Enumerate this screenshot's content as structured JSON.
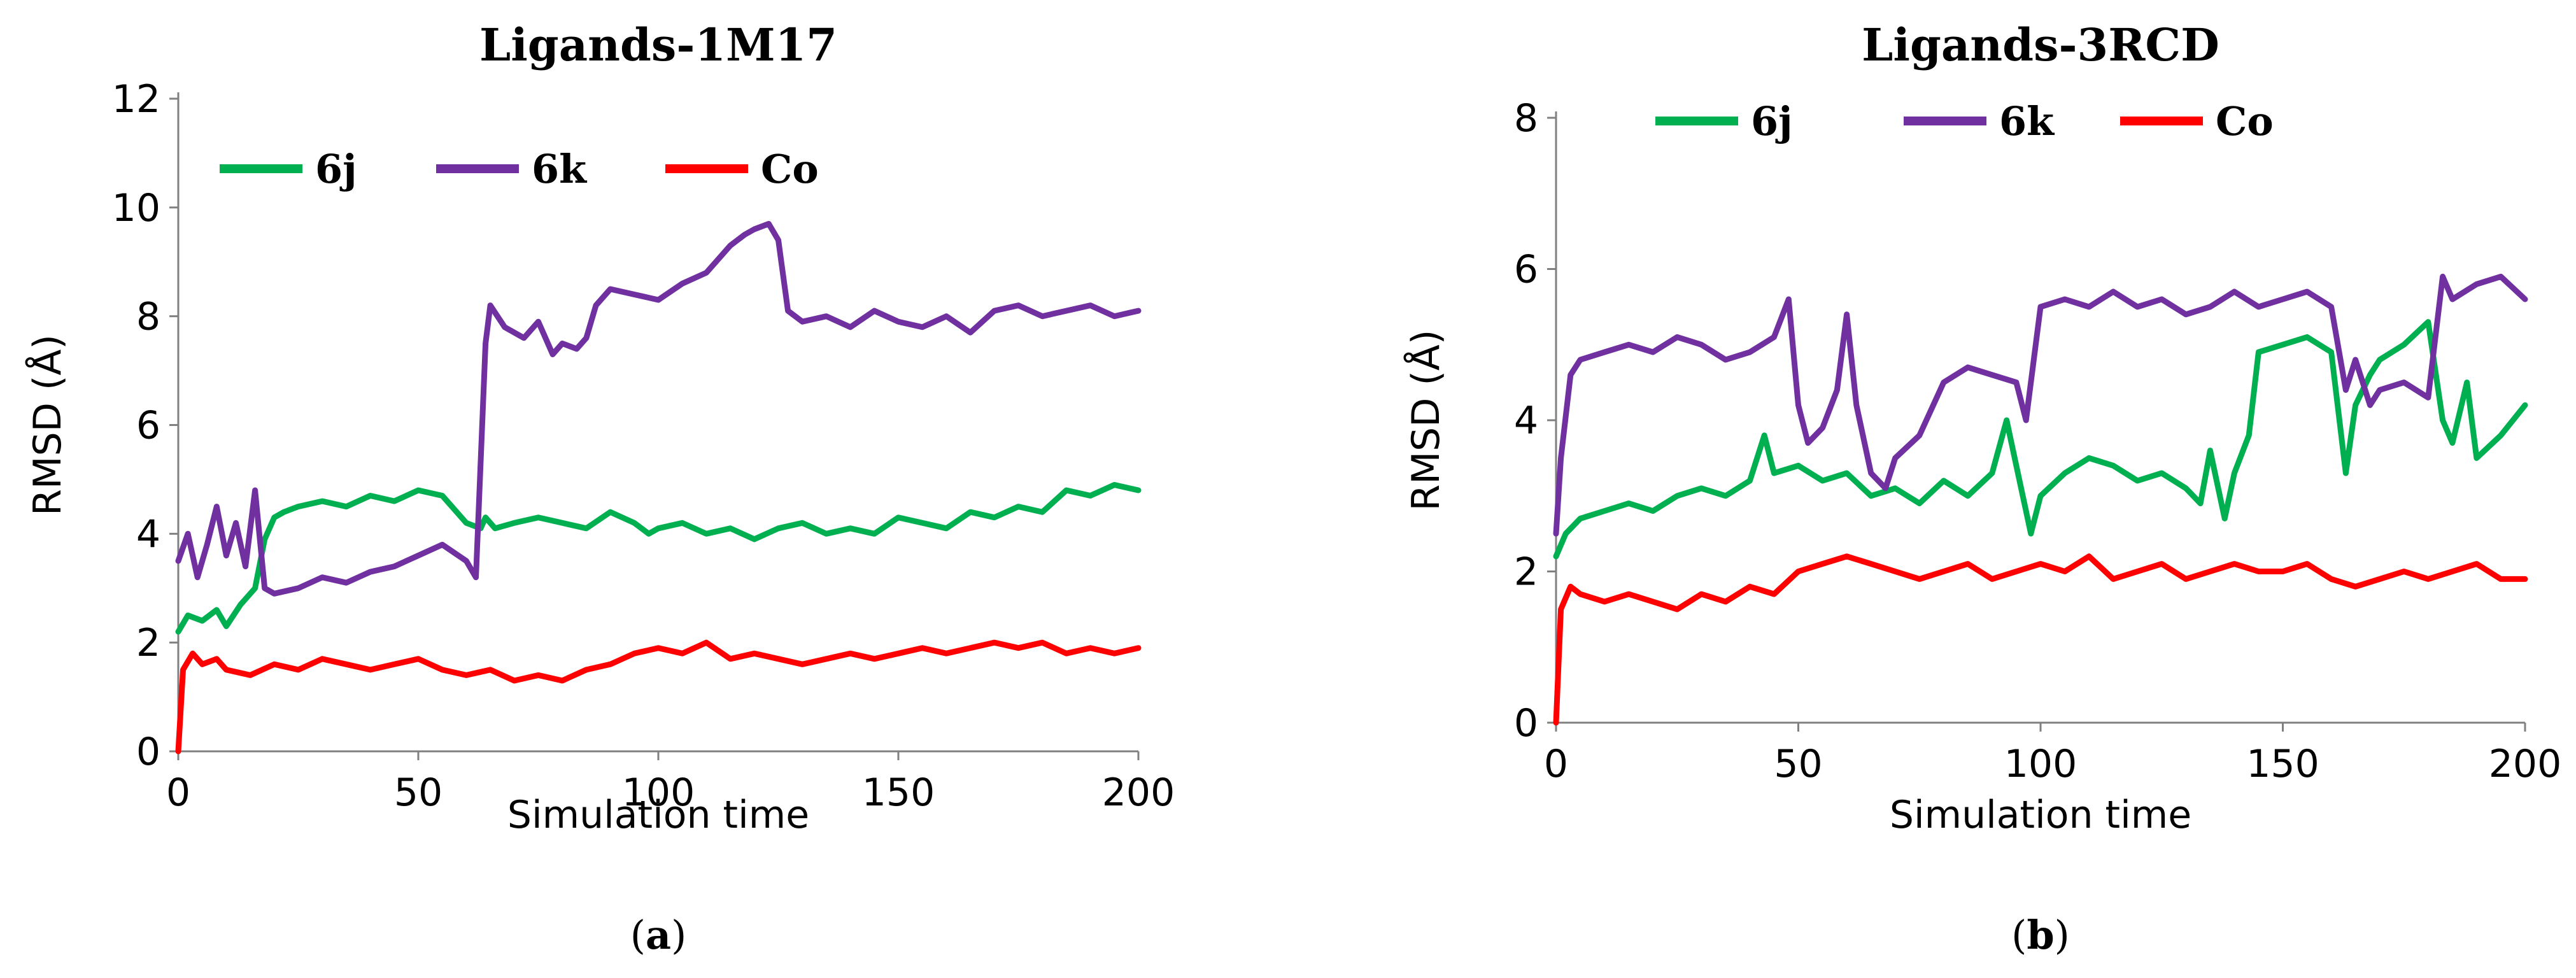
{
  "chart_data": [
    {
      "type": "line",
      "title": "Ligands-1M17",
      "xlabel": "Simulation time",
      "ylabel": "RMSD (Å)",
      "xlim": [
        0,
        200
      ],
      "ylim": [
        0,
        12
      ],
      "xticks": [
        "0",
        "50",
        "100",
        "150",
        "200"
      ],
      "yticks": [
        "0",
        "2",
        "4",
        "6",
        "8",
        "10",
        "12"
      ],
      "legend_position": "top-left",
      "panel_label": "a",
      "series": [
        {
          "name": "6j",
          "color": "#00b050",
          "x": [
            0,
            2,
            5,
            8,
            10,
            13,
            16,
            18,
            20,
            22,
            25,
            30,
            35,
            40,
            45,
            50,
            55,
            60,
            63,
            64,
            66,
            70,
            75,
            80,
            85,
            90,
            95,
            98,
            100,
            105,
            110,
            115,
            120,
            125,
            130,
            135,
            140,
            145,
            150,
            155,
            160,
            165,
            170,
            175,
            180,
            185,
            190,
            195,
            200
          ],
          "y": [
            2.2,
            2.5,
            2.4,
            2.6,
            2.3,
            2.7,
            3.0,
            3.9,
            4.3,
            4.4,
            4.5,
            4.6,
            4.5,
            4.7,
            4.6,
            4.8,
            4.7,
            4.2,
            4.1,
            4.3,
            4.1,
            4.2,
            4.3,
            4.2,
            4.1,
            4.4,
            4.2,
            4.0,
            4.1,
            4.2,
            4.0,
            4.1,
            3.9,
            4.1,
            4.2,
            4.0,
            4.1,
            4.0,
            4.3,
            4.2,
            4.1,
            4.4,
            4.3,
            4.5,
            4.4,
            4.8,
            4.7,
            4.9,
            4.8
          ]
        },
        {
          "name": "6k",
          "color": "#7030a0",
          "x": [
            0,
            2,
            4,
            6,
            8,
            10,
            12,
            14,
            16,
            18,
            20,
            25,
            30,
            35,
            40,
            45,
            50,
            55,
            60,
            62,
            64,
            65,
            68,
            72,
            75,
            78,
            80,
            83,
            85,
            87,
            90,
            95,
            100,
            105,
            110,
            115,
            118,
            120,
            123,
            125,
            127,
            130,
            135,
            140,
            145,
            150,
            155,
            160,
            165,
            170,
            175,
            180,
            185,
            190,
            195,
            200
          ],
          "y": [
            3.5,
            4.0,
            3.2,
            3.8,
            4.5,
            3.6,
            4.2,
            3.4,
            4.8,
            3.0,
            2.9,
            3.0,
            3.2,
            3.1,
            3.3,
            3.4,
            3.6,
            3.8,
            3.5,
            3.2,
            7.5,
            8.2,
            7.8,
            7.6,
            7.9,
            7.3,
            7.5,
            7.4,
            7.6,
            8.2,
            8.5,
            8.4,
            8.3,
            8.6,
            8.8,
            9.3,
            9.5,
            9.6,
            9.7,
            9.4,
            8.1,
            7.9,
            8.0,
            7.8,
            8.1,
            7.9,
            7.8,
            8.0,
            7.7,
            8.1,
            8.2,
            8.0,
            8.1,
            8.2,
            8.0,
            8.1
          ]
        },
        {
          "name": "Co",
          "color": "#ff0000",
          "x": [
            0,
            1,
            3,
            5,
            8,
            10,
            15,
            20,
            25,
            30,
            35,
            40,
            45,
            50,
            55,
            60,
            65,
            70,
            75,
            80,
            85,
            90,
            95,
            100,
            105,
            110,
            115,
            120,
            125,
            130,
            135,
            140,
            145,
            150,
            155,
            160,
            165,
            170,
            175,
            180,
            185,
            190,
            195,
            200
          ],
          "y": [
            0,
            1.5,
            1.8,
            1.6,
            1.7,
            1.5,
            1.4,
            1.6,
            1.5,
            1.7,
            1.6,
            1.5,
            1.6,
            1.7,
            1.5,
            1.4,
            1.5,
            1.3,
            1.4,
            1.3,
            1.5,
            1.6,
            1.8,
            1.9,
            1.8,
            2.0,
            1.7,
            1.8,
            1.7,
            1.6,
            1.7,
            1.8,
            1.7,
            1.8,
            1.9,
            1.8,
            1.9,
            2.0,
            1.9,
            2.0,
            1.8,
            1.9,
            1.8,
            1.9
          ]
        }
      ]
    },
    {
      "type": "line",
      "title": "Ligands-3RCD",
      "xlabel": "Simulation time",
      "ylabel": "RMSD (Å)",
      "xlim": [
        0,
        200
      ],
      "ylim": [
        0,
        8
      ],
      "xticks": [
        "0",
        "50",
        "100",
        "150",
        "200"
      ],
      "yticks": [
        "0",
        "2",
        "4",
        "6",
        "8"
      ],
      "legend_position": "top",
      "panel_label": "b",
      "series": [
        {
          "name": "6j",
          "color": "#00b050",
          "x": [
            0,
            2,
            5,
            10,
            15,
            20,
            25,
            30,
            35,
            40,
            43,
            45,
            50,
            55,
            60,
            65,
            70,
            75,
            80,
            85,
            90,
            93,
            95,
            98,
            100,
            105,
            110,
            115,
            120,
            125,
            130,
            133,
            135,
            138,
            140,
            143,
            145,
            150,
            155,
            160,
            163,
            165,
            168,
            170,
            175,
            180,
            183,
            185,
            188,
            190,
            195,
            200
          ],
          "y": [
            2.2,
            2.5,
            2.7,
            2.8,
            2.9,
            2.8,
            3.0,
            3.1,
            3.0,
            3.2,
            3.8,
            3.3,
            3.4,
            3.2,
            3.3,
            3.0,
            3.1,
            2.9,
            3.2,
            3.0,
            3.3,
            4.0,
            3.4,
            2.5,
            3.0,
            3.3,
            3.5,
            3.4,
            3.2,
            3.3,
            3.1,
            2.9,
            3.6,
            2.7,
            3.3,
            3.8,
            4.9,
            5.0,
            5.1,
            4.9,
            3.3,
            4.2,
            4.6,
            4.8,
            5.0,
            5.3,
            4.0,
            3.7,
            4.5,
            3.5,
            3.8,
            4.2
          ]
        },
        {
          "name": "6k",
          "color": "#7030a0",
          "x": [
            0,
            1,
            3,
            5,
            10,
            15,
            20,
            25,
            30,
            35,
            40,
            45,
            48,
            50,
            52,
            55,
            58,
            60,
            62,
            65,
            68,
            70,
            75,
            80,
            85,
            90,
            95,
            97,
            100,
            105,
            110,
            115,
            120,
            125,
            130,
            135,
            140,
            145,
            150,
            155,
            160,
            163,
            165,
            168,
            170,
            175,
            180,
            183,
            185,
            190,
            195,
            200
          ],
          "y": [
            2.5,
            3.5,
            4.6,
            4.8,
            4.9,
            5.0,
            4.9,
            5.1,
            5.0,
            4.8,
            4.9,
            5.1,
            5.6,
            4.2,
            3.7,
            3.9,
            4.4,
            5.4,
            4.2,
            3.3,
            3.1,
            3.5,
            3.8,
            4.5,
            4.7,
            4.6,
            4.5,
            4.0,
            5.5,
            5.6,
            5.5,
            5.7,
            5.5,
            5.6,
            5.4,
            5.5,
            5.7,
            5.5,
            5.6,
            5.7,
            5.5,
            4.4,
            4.8,
            4.2,
            4.4,
            4.5,
            4.3,
            5.9,
            5.6,
            5.8,
            5.9,
            5.6
          ]
        },
        {
          "name": "Co",
          "color": "#ff0000",
          "x": [
            0,
            1,
            3,
            5,
            10,
            15,
            20,
            25,
            30,
            35,
            40,
            45,
            50,
            55,
            60,
            65,
            70,
            75,
            80,
            85,
            90,
            95,
            100,
            105,
            110,
            115,
            120,
            125,
            130,
            135,
            140,
            145,
            150,
            155,
            160,
            165,
            170,
            175,
            180,
            185,
            190,
            195,
            200
          ],
          "y": [
            0,
            1.5,
            1.8,
            1.7,
            1.6,
            1.7,
            1.6,
            1.5,
            1.7,
            1.6,
            1.8,
            1.7,
            2.0,
            2.1,
            2.2,
            2.1,
            2.0,
            1.9,
            2.0,
            2.1,
            1.9,
            2.0,
            2.1,
            2.0,
            2.2,
            1.9,
            2.0,
            2.1,
            1.9,
            2.0,
            2.1,
            2.0,
            2.0,
            2.1,
            1.9,
            1.8,
            1.9,
            2.0,
            1.9,
            2.0,
            2.1,
            1.9,
            1.9
          ]
        }
      ]
    }
  ]
}
